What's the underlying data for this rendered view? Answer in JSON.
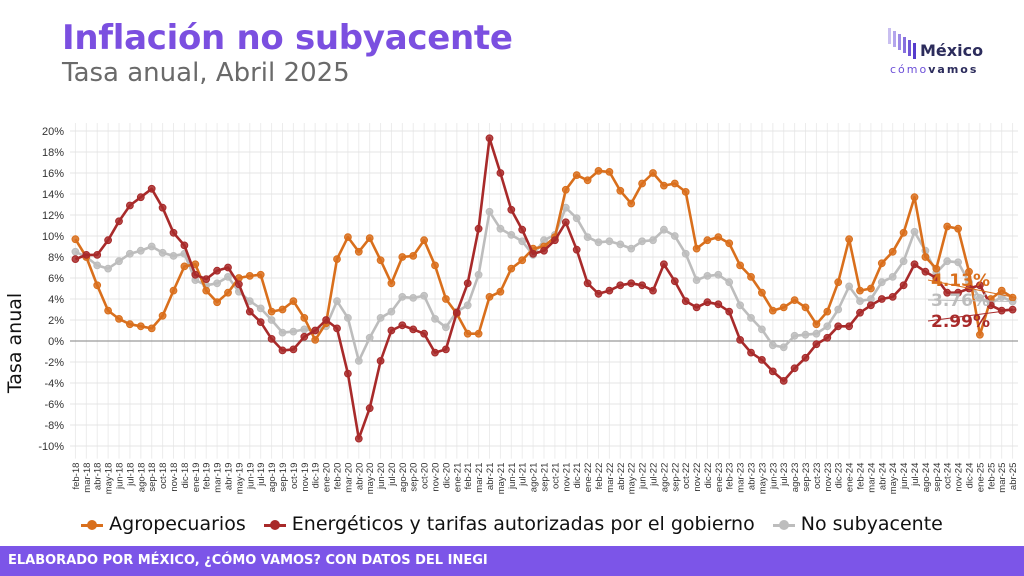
{
  "header": {
    "title": "Inflación no subyacente",
    "subtitle": "Tasa anual, Abril 2025"
  },
  "logo": {
    "name": "México",
    "tag_part1": "cómo",
    "tag_part2": "vamos"
  },
  "footer": {
    "text": "ELABORADO POR MÉXICO, ¿CÓMO VAMOS? CON DATOS DEL INEGI"
  },
  "colors": {
    "accent": "#7b4fe0",
    "footer_bg": "#7c55e8"
  },
  "chart_data": {
    "type": "line",
    "title": "Inflación no subyacente",
    "subtitle": "Tasa anual, Abril 2025",
    "xlabel": "",
    "ylabel": "Tasa anual",
    "ylim": [
      -12,
      21
    ],
    "yticks": [
      -10,
      -8,
      -6,
      -4,
      -2,
      0,
      2,
      4,
      6,
      8,
      10,
      12,
      14,
      16,
      18,
      20
    ],
    "ytick_labels": [
      "-10%",
      "-8%",
      "-6%",
      "-4%",
      "-2%",
      "0%",
      "2%",
      "4%",
      "6%",
      "8%",
      "10%",
      "12%",
      "14%",
      "16%",
      "18%",
      "20%"
    ],
    "grid": true,
    "legend_position": "bottom",
    "x": [
      "feb-18",
      "mar-18",
      "abr-18",
      "may-18",
      "jun-18",
      "jul-18",
      "ago-18",
      "sep-18",
      "oct-18",
      "nov-18",
      "dic-18",
      "ene-19",
      "feb-19",
      "mar-19",
      "abr-19",
      "may-19",
      "jun-19",
      "jul-19",
      "ago-19",
      "sep-19",
      "oct-19",
      "nov-19",
      "dic-19",
      "ene-20",
      "feb-20",
      "mar-20",
      "abr-20",
      "may-20",
      "jun-20",
      "jul-20",
      "ago-20",
      "sep-20",
      "oct-20",
      "nov-20",
      "dic-20",
      "ene-21",
      "feb-21",
      "mar-21",
      "abr-21",
      "may-21",
      "jun-21",
      "jul-21",
      "ago-21",
      "sep-21",
      "oct-21",
      "nov-21",
      "dic-21",
      "ene-22",
      "feb-22",
      "mar-22",
      "abr-22",
      "may-22",
      "jun-22",
      "jul-22",
      "ago-22",
      "sep-22",
      "oct-22",
      "nov-22",
      "dic-22",
      "ene-23",
      "feb-23",
      "mar-23",
      "abr-23",
      "may-23",
      "jun-23",
      "jul-23",
      "ago-23",
      "sep-23",
      "oct-23",
      "nov-23",
      "dic-23",
      "ene-24",
      "feb-24",
      "mar-24",
      "abr-24",
      "may-24",
      "jun-24",
      "jul-24",
      "ago-24",
      "sep-24",
      "oct-24",
      "nov-24",
      "dic-24",
      "ene-25",
      "feb-25",
      "mar-25",
      "abr-25"
    ],
    "series": [
      {
        "name": "Agropecuarios",
        "color": "#d96f1c",
        "end_label": "4.13%",
        "values": [
          9.7,
          8.0,
          5.3,
          2.9,
          2.1,
          1.6,
          1.4,
          1.2,
          2.4,
          4.8,
          7.1,
          7.3,
          4.8,
          3.7,
          4.6,
          6.0,
          6.2,
          6.3,
          2.8,
          3.0,
          3.8,
          2.2,
          0.1,
          1.7,
          7.8,
          9.9,
          8.5,
          9.8,
          7.7,
          5.5,
          8.0,
          8.1,
          9.6,
          7.2,
          4.0,
          2.6,
          0.7,
          0.7,
          4.2,
          4.7,
          6.9,
          7.7,
          8.8,
          9.0,
          9.9,
          14.4,
          15.8,
          15.3,
          16.2,
          16.1,
          14.3,
          13.1,
          15.0,
          16.0,
          14.8,
          15.0,
          14.2,
          8.8,
          9.6,
          9.9,
          9.3,
          7.2,
          6.1,
          4.6,
          2.9,
          3.2,
          3.9,
          3.2,
          1.6,
          2.8,
          5.6,
          9.7,
          4.8,
          5.0,
          7.4,
          8.5,
          10.3,
          13.7,
          8.0,
          6.9,
          10.9,
          10.7,
          6.6,
          0.6,
          4.0,
          4.8,
          4.13
        ]
      },
      {
        "name": "Energéticos y tarifas autorizadas por el gobierno",
        "color": "#a82a2a",
        "end_label": "2.99%",
        "values": [
          7.8,
          8.2,
          8.2,
          9.6,
          11.4,
          12.9,
          13.7,
          14.5,
          12.7,
          10.3,
          9.1,
          6.3,
          5.9,
          6.7,
          7.0,
          5.4,
          2.8,
          1.8,
          0.2,
          -0.9,
          -0.8,
          0.4,
          1.0,
          2.0,
          1.2,
          -3.1,
          -9.3,
          -6.4,
          -1.9,
          1.0,
          1.5,
          1.1,
          0.7,
          -1.1,
          -0.8,
          2.7,
          5.5,
          10.7,
          19.3,
          16.0,
          12.5,
          10.6,
          8.3,
          8.6,
          9.6,
          11.3,
          8.7,
          5.5,
          4.5,
          4.8,
          5.3,
          5.5,
          5.3,
          4.8,
          7.3,
          5.7,
          3.8,
          3.2,
          3.7,
          3.5,
          2.8,
          0.1,
          -1.1,
          -1.8,
          -2.9,
          -3.8,
          -2.6,
          -1.6,
          -0.3,
          0.3,
          1.4,
          1.4,
          2.7,
          3.4,
          4.0,
          4.2,
          5.3,
          7.3,
          6.6,
          6.0,
          4.6,
          4.6,
          5.0,
          5.3,
          3.4,
          2.9,
          2.99
        ]
      },
      {
        "name": "No subyacente",
        "color": "#bdbdbd",
        "end_label": "3.76%",
        "values": [
          8.5,
          8.0,
          7.2,
          6.9,
          7.6,
          8.3,
          8.6,
          9.0,
          8.4,
          8.1,
          8.3,
          5.8,
          5.3,
          5.5,
          6.1,
          4.7,
          3.8,
          3.1,
          2.0,
          0.8,
          0.9,
          1.1,
          1.0,
          1.4,
          3.8,
          2.2,
          -1.9,
          0.3,
          2.2,
          2.8,
          4.2,
          4.1,
          4.3,
          2.1,
          1.3,
          2.8,
          3.4,
          6.3,
          12.3,
          10.7,
          10.1,
          9.5,
          8.2,
          9.6,
          10.1,
          12.7,
          11.7,
          9.9,
          9.4,
          9.5,
          9.2,
          8.8,
          9.5,
          9.6,
          10.6,
          10.0,
          8.3,
          5.8,
          6.2,
          6.3,
          5.6,
          3.4,
          2.2,
          1.1,
          -0.4,
          -0.6,
          0.5,
          0.6,
          0.7,
          1.4,
          3.0,
          5.2,
          3.8,
          4.0,
          5.6,
          6.1,
          7.6,
          10.4,
          8.6,
          6.5,
          7.6,
          7.5,
          5.6,
          4.1,
          3.6,
          4.2,
          3.76
        ]
      }
    ]
  }
}
